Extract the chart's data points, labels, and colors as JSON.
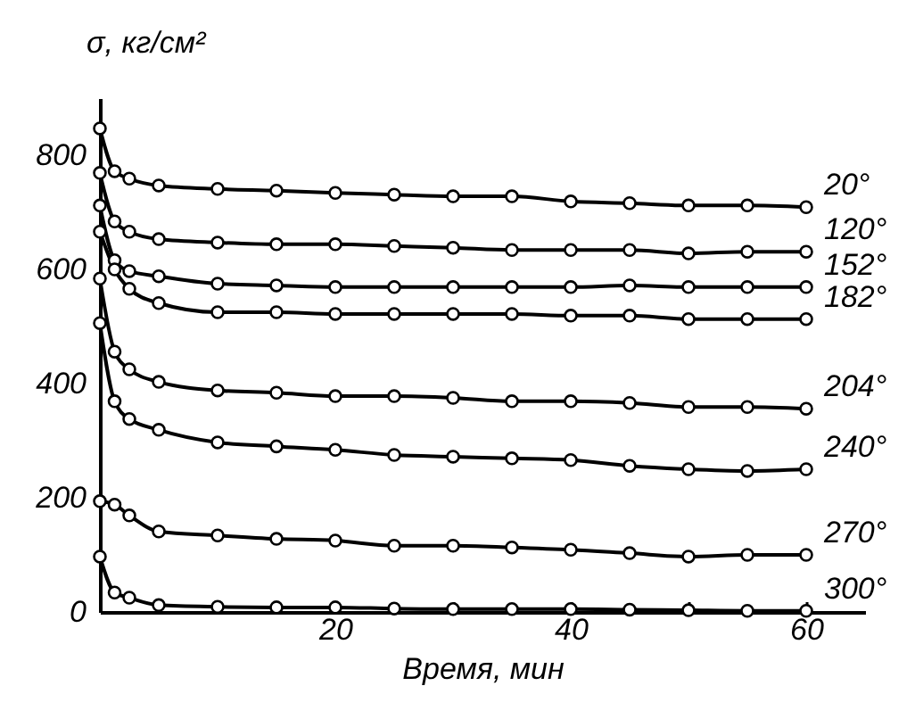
{
  "chart_data": {
    "type": "line",
    "xlabel": "Время, мин",
    "ylabel": "σ, кг/см²",
    "x": [
      0,
      1.25,
      2.5,
      5,
      10,
      15,
      20,
      25,
      30,
      35,
      40,
      45,
      50,
      55,
      60
    ],
    "series": [
      {
        "name": "20°",
        "color": "#000000",
        "values": [
          847,
          772,
          759,
          747,
          741,
          738,
          734,
          731,
          728,
          728,
          719,
          716,
          712,
          712,
          709
        ]
      },
      {
        "name": "120°",
        "color": "#000000",
        "values": [
          769,
          684,
          666,
          653,
          647,
          644,
          644,
          641,
          638,
          634,
          634,
          634,
          628,
          631,
          631
        ]
      },
      {
        "name": "152°",
        "color": "#000000",
        "values": [
          712,
          616,
          597,
          588,
          575,
          572,
          569,
          569,
          569,
          569,
          569,
          572,
          569,
          569,
          569
        ]
      },
      {
        "name": "182°",
        "color": "#000000",
        "values": [
          666,
          600,
          566,
          541,
          525,
          525,
          522,
          522,
          522,
          522,
          519,
          519,
          513,
          513,
          513
        ]
      },
      {
        "name": "204°",
        "color": "#000000",
        "values": [
          584,
          456,
          425,
          403,
          388,
          384,
          378,
          378,
          375,
          369,
          369,
          366,
          359,
          359,
          356
        ]
      },
      {
        "name": "240°",
        "color": "#000000",
        "values": [
          506,
          369,
          338,
          319,
          297,
          290,
          284,
          275,
          272,
          269,
          266,
          256,
          250,
          247,
          250
        ]
      },
      {
        "name": "270°",
        "color": "#000000",
        "values": [
          194,
          188,
          169,
          141,
          134,
          128,
          125,
          116,
          116,
          113,
          109,
          103,
          97,
          100,
          100
        ]
      },
      {
        "name": "300°",
        "color": "#000000",
        "values": [
          97,
          34,
          25,
          12,
          9,
          8,
          8,
          6,
          5,
          5,
          5,
          4,
          3,
          2,
          2
        ]
      }
    ],
    "xlim": [
      0,
      65
    ],
    "ylim": [
      0,
      900
    ],
    "xticks": [
      {
        "value": 10,
        "label": null
      },
      20,
      {
        "value": 30,
        "label": null
      },
      40,
      {
        "value": 50,
        "label": null
      },
      60
    ],
    "yticks": [
      0,
      200,
      400,
      600,
      800
    ],
    "grid": false,
    "legend": false,
    "marker": "circle",
    "line_style": "solid"
  }
}
